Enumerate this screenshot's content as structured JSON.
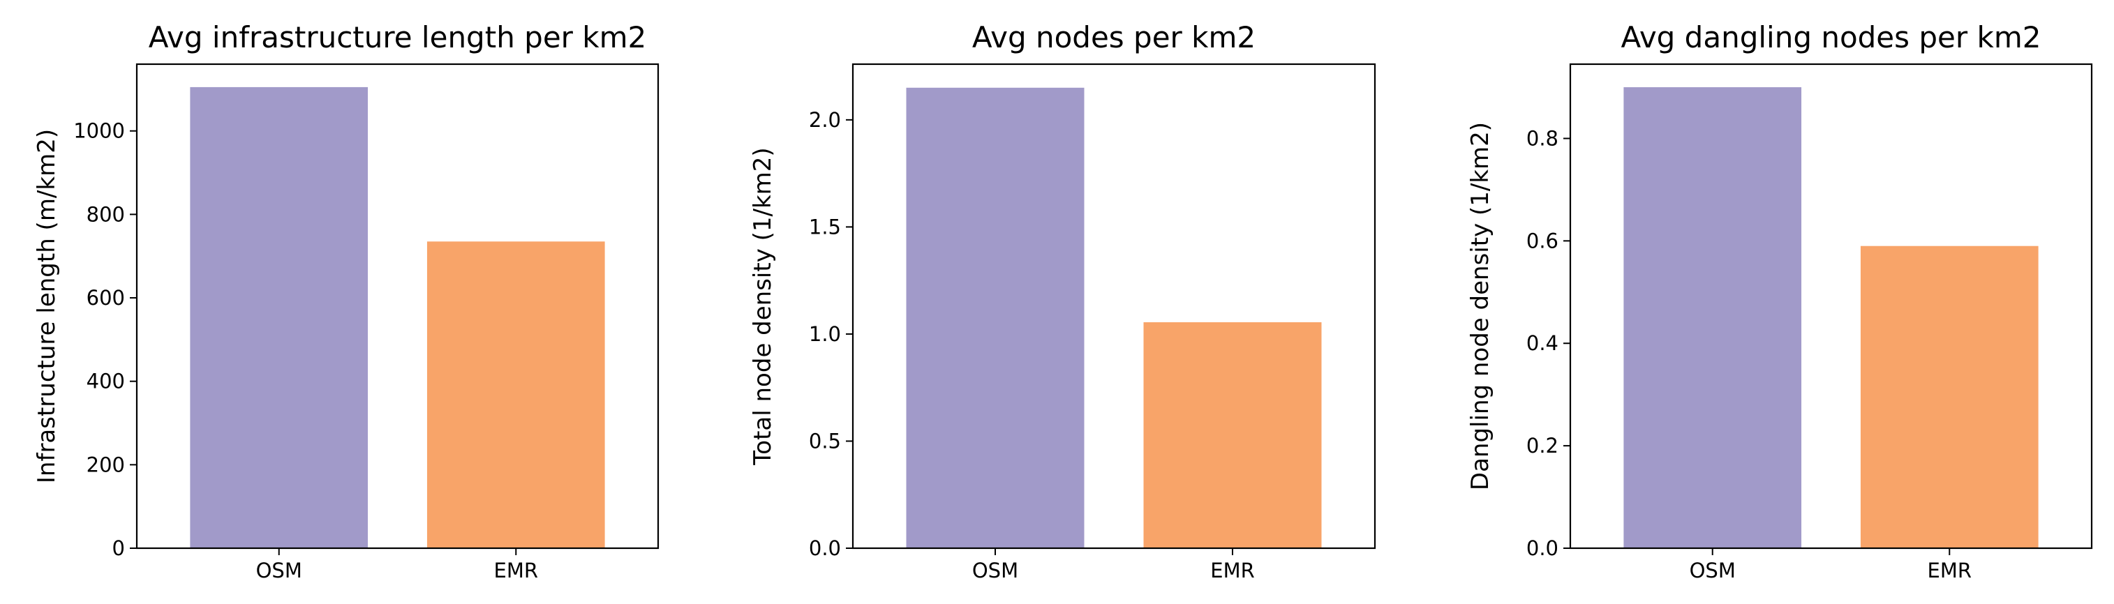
{
  "chart_data": [
    {
      "type": "bar",
      "title": "Avg infrastructure length per km2",
      "xlabel": "",
      "ylabel": "Infrastructure length (m/km2)",
      "categories": [
        "OSM",
        "EMR"
      ],
      "values": [
        1105,
        735
      ],
      "colors": [
        "#a19ac9",
        "#f8a469"
      ],
      "ylim": [
        0,
        1160
      ],
      "yticks": [
        0,
        200,
        400,
        600,
        800,
        1000
      ],
      "ytick_labels": [
        "0",
        "200",
        "400",
        "600",
        "800",
        "1000"
      ],
      "grid": false,
      "legend": false
    },
    {
      "type": "bar",
      "title": "Avg nodes per km2",
      "xlabel": "",
      "ylabel": "Total node density (1/km2)",
      "categories": [
        "OSM",
        "EMR"
      ],
      "values": [
        2.15,
        1.055
      ],
      "colors": [
        "#a19ac9",
        "#f8a469"
      ],
      "ylim": [
        0,
        2.26
      ],
      "yticks": [
        0,
        0.5,
        1.0,
        1.5,
        2.0
      ],
      "ytick_labels": [
        "0.0",
        "0.5",
        "1.0",
        "1.5",
        "2.0"
      ],
      "grid": false,
      "legend": false
    },
    {
      "type": "bar",
      "title": "Avg dangling nodes per km2",
      "xlabel": "",
      "ylabel": "Dangling node density (1/km2)",
      "categories": [
        "OSM",
        "EMR"
      ],
      "values": [
        0.9,
        0.59
      ],
      "colors": [
        "#a19ac9",
        "#f8a469"
      ],
      "ylim": [
        0,
        0.945
      ],
      "yticks": [
        0,
        0.2,
        0.4,
        0.6,
        0.8
      ],
      "ytick_labels": [
        "0.0",
        "0.2",
        "0.4",
        "0.6",
        "0.8"
      ],
      "grid": false,
      "legend": false
    }
  ]
}
